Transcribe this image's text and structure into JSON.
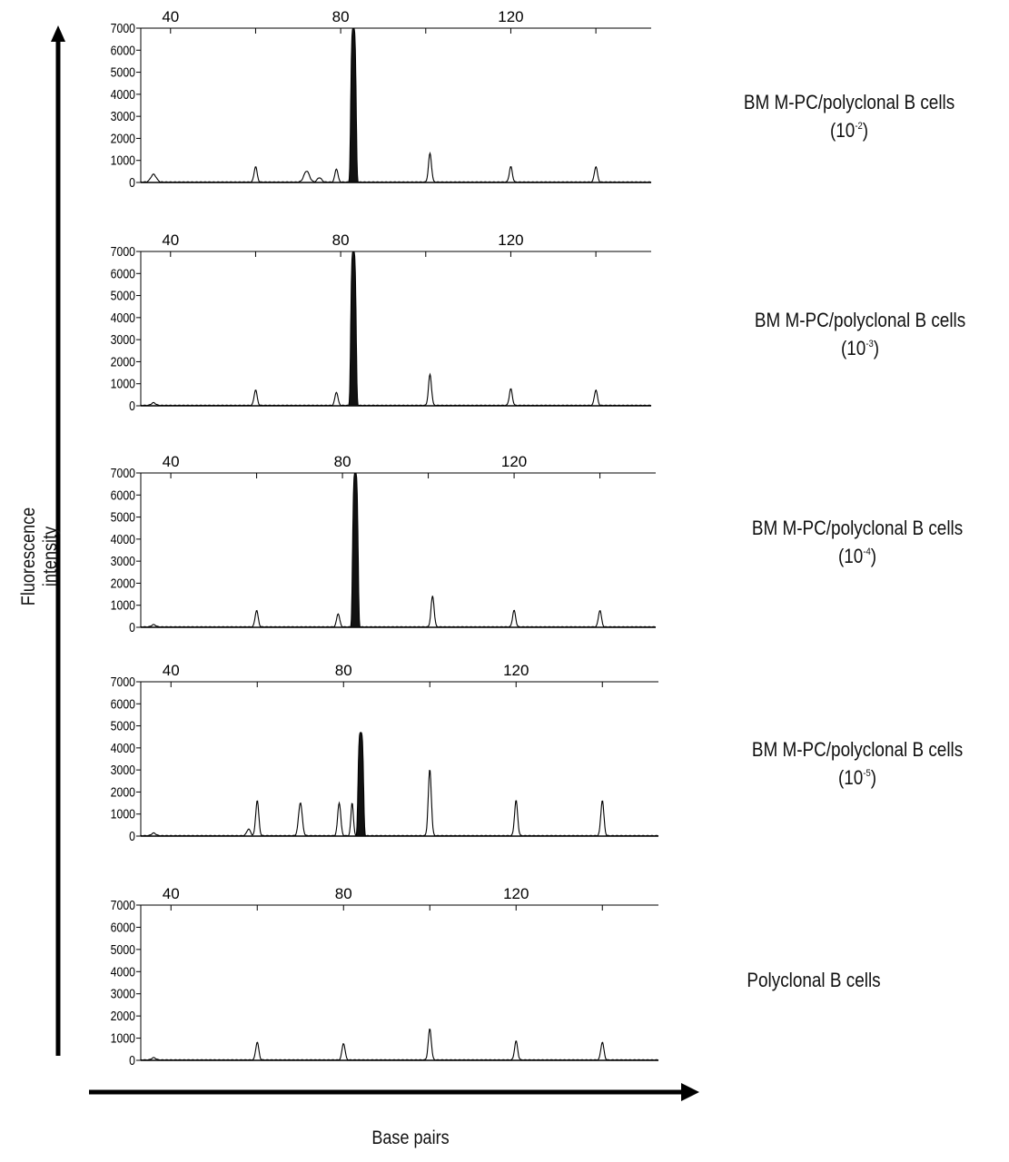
{
  "axes": {
    "y_label": "Fluorescence intensity",
    "x_label": "Base pairs"
  },
  "chart_data": [
    {
      "type": "line",
      "panel": 1,
      "label_main": "BM M-PC/polyclonal B cells",
      "label_base": "(10",
      "label_exp": "-2",
      "label_close": ")",
      "top_ticks": [
        "40",
        "80",
        "120"
      ],
      "y_ticks": [
        "7000",
        "6000",
        "5000",
        "4000",
        "3000",
        "2000",
        "1000",
        "0"
      ],
      "ylim": [
        0,
        7000
      ],
      "xlim": [
        33,
        153
      ],
      "reference_peaks": [
        [
          36,
          350,
          0.9
        ],
        [
          60,
          700,
          0.5
        ],
        [
          72,
          500,
          0.9
        ],
        [
          75,
          200,
          0.7
        ],
        [
          79,
          600,
          0.5
        ],
        [
          101,
          1300,
          0.5
        ],
        [
          120,
          700,
          0.5
        ],
        [
          140,
          700,
          0.5
        ]
      ],
      "clonal_peak": {
        "bp": 83,
        "value": 7000
      }
    },
    {
      "type": "line",
      "panel": 2,
      "label_main": "BM M-PC/polyclonal B cells",
      "label_base": "(10",
      "label_exp": "-3",
      "label_close": ")",
      "top_ticks": [
        "40",
        "80",
        "120"
      ],
      "y_ticks": [
        "7000",
        "6000",
        "5000",
        "4000",
        "3000",
        "2000",
        "1000",
        "0"
      ],
      "ylim": [
        0,
        7000
      ],
      "xlim": [
        33,
        153
      ],
      "reference_peaks": [
        [
          36,
          120,
          0.7
        ],
        [
          60,
          700,
          0.5
        ],
        [
          79,
          600,
          0.5
        ],
        [
          101,
          1400,
          0.5
        ],
        [
          120,
          750,
          0.5
        ],
        [
          140,
          700,
          0.5
        ]
      ],
      "clonal_peak": {
        "bp": 83,
        "value": 7000
      }
    },
    {
      "type": "line",
      "panel": 3,
      "label_main": "BM M-PC/polyclonal B cells",
      "label_base": "(10",
      "label_exp": "-4",
      "label_close": ")",
      "top_ticks": [
        "40",
        "80",
        "120"
      ],
      "y_ticks": [
        "7000",
        "6000",
        "5000",
        "4000",
        "3000",
        "2000",
        "1000",
        "0"
      ],
      "ylim": [
        0,
        7000
      ],
      "xlim": [
        33,
        153
      ],
      "reference_peaks": [
        [
          36,
          100,
          0.7
        ],
        [
          60,
          750,
          0.5
        ],
        [
          79,
          600,
          0.5
        ],
        [
          101,
          1400,
          0.5
        ],
        [
          120,
          750,
          0.5
        ],
        [
          140,
          750,
          0.5
        ]
      ],
      "clonal_peak": {
        "bp": 83,
        "value": 7000
      }
    },
    {
      "type": "line",
      "panel": 4,
      "label_main": "BM M-PC/polyclonal B cells",
      "label_base": "(10",
      "label_exp": "-5",
      "label_close": ")",
      "top_ticks": [
        "40",
        "80",
        "120"
      ],
      "y_ticks": [
        "7000",
        "6000",
        "5000",
        "4000",
        "3000",
        "2000",
        "1000",
        "0"
      ],
      "ylim": [
        0,
        7000
      ],
      "xlim": [
        33,
        153
      ],
      "reference_peaks": [
        [
          36,
          120,
          0.7
        ],
        [
          58,
          300,
          0.6
        ],
        [
          60,
          1600,
          0.5
        ],
        [
          70,
          1500,
          0.6
        ],
        [
          79,
          1500,
          0.5
        ],
        [
          82,
          1500,
          0.4
        ],
        [
          100,
          3000,
          0.5
        ],
        [
          120,
          1600,
          0.5
        ],
        [
          140,
          1600,
          0.5
        ]
      ],
      "clonal_peak": {
        "bp": 84,
        "value": 4700
      }
    },
    {
      "type": "line",
      "panel": 5,
      "label_main": "Polyclonal B cells",
      "label_base": "",
      "label_exp": "",
      "label_close": "",
      "top_ticks": [
        "40",
        "80",
        "120"
      ],
      "y_ticks": [
        "7000",
        "6000",
        "5000",
        "4000",
        "3000",
        "2000",
        "1000",
        "0"
      ],
      "ylim": [
        0,
        7000
      ],
      "xlim": [
        33,
        153
      ],
      "reference_peaks": [
        [
          36,
          100,
          0.7
        ],
        [
          60,
          800,
          0.5
        ],
        [
          80,
          750,
          0.5
        ],
        [
          100,
          1400,
          0.5
        ],
        [
          120,
          850,
          0.5
        ],
        [
          140,
          800,
          0.5
        ]
      ],
      "clonal_peak": null
    }
  ]
}
